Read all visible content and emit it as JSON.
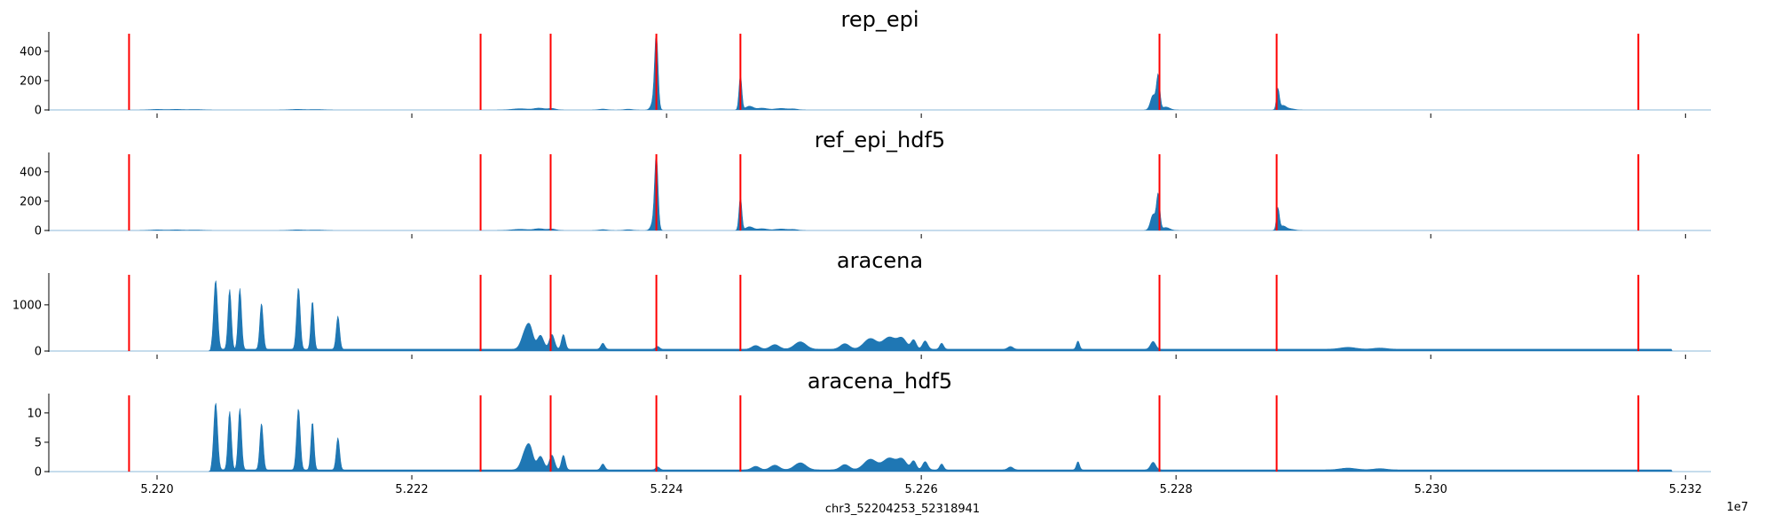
{
  "figure": {
    "xlabel": "chr3_52204253_52318941",
    "x_offset_text": "1e7"
  },
  "colors": {
    "fill": "#1f77b4",
    "marker": "#ff0000",
    "axis": "#000000"
  },
  "chart_data": [
    {
      "type": "area",
      "title": "rep_epi",
      "x_range": [
        52191500,
        52322000
      ],
      "ylim": [
        0,
        520
      ],
      "y_ticks": [
        0,
        200,
        400
      ],
      "x_ticks": [
        52200000,
        52220000,
        52240000,
        52260000,
        52280000,
        52300000,
        52320000
      ],
      "x_tick_labels_shown": false,
      "markers": [
        52197800,
        52225400,
        52230900,
        52239200,
        52245800,
        52278700,
        52287900,
        52316300
      ],
      "peaks": [
        [
          52200000,
          4,
          500
        ],
        [
          52201500,
          4,
          500
        ],
        [
          52203000,
          3,
          500
        ],
        [
          52211000,
          4,
          500
        ],
        [
          52212500,
          3,
          500
        ],
        [
          52228500,
          8,
          600
        ],
        [
          52230000,
          12,
          400
        ],
        [
          52231000,
          10,
          300
        ],
        [
          52235000,
          6,
          300
        ],
        [
          52237000,
          5,
          300
        ],
        [
          52239200,
          500,
          130
        ],
        [
          52239000,
          60,
          200
        ],
        [
          52245800,
          240,
          110
        ],
        [
          52246500,
          25,
          300
        ],
        [
          52247500,
          12,
          400
        ],
        [
          52249000,
          10,
          500
        ],
        [
          52250000,
          6,
          300
        ],
        [
          52278200,
          100,
          200
        ],
        [
          52278600,
          230,
          130
        ],
        [
          52279200,
          20,
          300
        ],
        [
          52288000,
          140,
          110
        ],
        [
          52288400,
          30,
          250
        ],
        [
          52289000,
          8,
          300
        ]
      ]
    },
    {
      "type": "area",
      "title": "ref_epi_hdf5",
      "x_range": [
        52191500,
        52322000
      ],
      "ylim": [
        0,
        520
      ],
      "y_ticks": [
        0,
        200,
        400
      ],
      "x_ticks": [
        52200000,
        52220000,
        52240000,
        52260000,
        52280000,
        52300000,
        52320000
      ],
      "x_tick_labels_shown": false,
      "markers": [
        52197800,
        52225400,
        52230900,
        52239200,
        52245800,
        52278700,
        52287900,
        52316300
      ],
      "peaks": [
        [
          52200000,
          4,
          500
        ],
        [
          52201500,
          4,
          500
        ],
        [
          52203000,
          3,
          500
        ],
        [
          52211000,
          4,
          500
        ],
        [
          52212500,
          3,
          500
        ],
        [
          52228500,
          8,
          600
        ],
        [
          52230000,
          12,
          400
        ],
        [
          52231000,
          10,
          300
        ],
        [
          52235000,
          6,
          300
        ],
        [
          52237000,
          5,
          300
        ],
        [
          52239200,
          490,
          130
        ],
        [
          52239000,
          60,
          200
        ],
        [
          52245800,
          230,
          110
        ],
        [
          52246500,
          25,
          300
        ],
        [
          52247500,
          12,
          400
        ],
        [
          52249000,
          10,
          500
        ],
        [
          52250000,
          6,
          300
        ],
        [
          52278200,
          110,
          200
        ],
        [
          52278600,
          240,
          130
        ],
        [
          52279200,
          20,
          300
        ],
        [
          52288000,
          150,
          110
        ],
        [
          52288400,
          30,
          250
        ],
        [
          52289000,
          8,
          300
        ]
      ]
    },
    {
      "type": "area",
      "title": "aracena",
      "x_range": [
        52191500,
        52322000
      ],
      "ylim": [
        0,
        1650
      ],
      "y_ticks": [
        0,
        1000
      ],
      "x_ticks": [
        52200000,
        52220000,
        52240000,
        52260000,
        52280000,
        52300000,
        52320000
      ],
      "x_tick_labels_shown": false,
      "markers": [
        52197800,
        52225400,
        52230900,
        52239200,
        52245800,
        52278700,
        52287900,
        52316300
      ],
      "domain": [
        52204253,
        52318941
      ],
      "baseline": 40,
      "peaks": [
        [
          52204600,
          1500,
          150
        ],
        [
          52205700,
          1300,
          130
        ],
        [
          52206500,
          1320,
          130
        ],
        [
          52208200,
          1000,
          130
        ],
        [
          52211100,
          1340,
          140
        ],
        [
          52212200,
          1050,
          120
        ],
        [
          52214200,
          720,
          130
        ],
        [
          52228900,
          350,
          300
        ],
        [
          52229300,
          380,
          250
        ],
        [
          52230100,
          300,
          250
        ],
        [
          52231000,
          320,
          200
        ],
        [
          52231900,
          320,
          150
        ],
        [
          52235000,
          130,
          150
        ],
        [
          52239300,
          60,
          150
        ],
        [
          52247000,
          80,
          300
        ],
        [
          52248500,
          100,
          350
        ],
        [
          52250500,
          160,
          450
        ],
        [
          52254000,
          120,
          350
        ],
        [
          52256000,
          230,
          500
        ],
        [
          52257500,
          260,
          500
        ],
        [
          52258500,
          220,
          350
        ],
        [
          52259400,
          200,
          200
        ],
        [
          52260300,
          180,
          200
        ],
        [
          52261600,
          130,
          150
        ],
        [
          52267000,
          60,
          200
        ],
        [
          52272300,
          180,
          120
        ],
        [
          52278200,
          170,
          200
        ],
        [
          52293500,
          40,
          600
        ],
        [
          52296000,
          25,
          500
        ]
      ]
    },
    {
      "type": "area",
      "title": "aracena_hdf5",
      "x_range": [
        52191500,
        52322000
      ],
      "ylim": [
        0,
        13
      ],
      "y_ticks": [
        0,
        5,
        10
      ],
      "x_ticks": [
        52200000,
        52220000,
        52240000,
        52260000,
        52280000,
        52300000,
        52320000
      ],
      "x_tick_labels": [
        "5.220",
        "5.222",
        "5.224",
        "5.226",
        "5.228",
        "5.230",
        "5.232"
      ],
      "x_tick_labels_shown": true,
      "markers": [
        52197800,
        52225400,
        52230900,
        52239200,
        52245800,
        52278700,
        52287900,
        52316300
      ],
      "domain": [
        52204253,
        52318941
      ],
      "baseline": 0.3,
      "peaks": [
        [
          52204600,
          11.5,
          150
        ],
        [
          52205700,
          10,
          130
        ],
        [
          52206500,
          10.5,
          130
        ],
        [
          52208200,
          8,
          130
        ],
        [
          52211100,
          10.5,
          140
        ],
        [
          52212200,
          8.2,
          120
        ],
        [
          52214200,
          5.5,
          130
        ],
        [
          52228900,
          2.8,
          300
        ],
        [
          52229300,
          3.0,
          250
        ],
        [
          52230100,
          2.3,
          250
        ],
        [
          52231000,
          2.5,
          200
        ],
        [
          52231900,
          2.5,
          150
        ],
        [
          52235000,
          1.0,
          150
        ],
        [
          52239300,
          0.5,
          150
        ],
        [
          52247000,
          0.6,
          300
        ],
        [
          52248500,
          0.8,
          350
        ],
        [
          52250500,
          1.2,
          450
        ],
        [
          52254000,
          0.9,
          350
        ],
        [
          52256000,
          1.8,
          500
        ],
        [
          52257500,
          2.0,
          500
        ],
        [
          52258500,
          1.7,
          350
        ],
        [
          52259400,
          1.5,
          200
        ],
        [
          52260300,
          1.4,
          200
        ],
        [
          52261600,
          1.0,
          150
        ],
        [
          52267000,
          0.5,
          200
        ],
        [
          52272300,
          1.4,
          120
        ],
        [
          52278200,
          1.3,
          200
        ],
        [
          52293500,
          0.3,
          600
        ],
        [
          52296000,
          0.2,
          500
        ]
      ]
    }
  ]
}
